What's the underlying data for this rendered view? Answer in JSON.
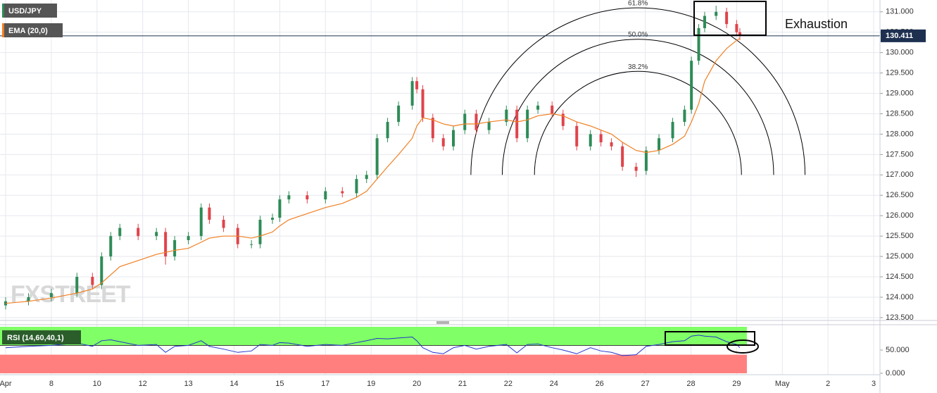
{
  "chart_data": {
    "type": "candlestick",
    "symbol": "USD/JPY",
    "watermark": "FXSTREET",
    "categories": [
      "Apr",
      "8",
      "10",
      "12",
      "13",
      "14",
      "15",
      "17",
      "19",
      "20",
      "21",
      "22",
      "24",
      "26",
      "27",
      "28",
      "29",
      "May",
      "2",
      "3"
    ],
    "ylim": [
      123.43,
      131.29
    ],
    "yticks": [
      {
        "value": 123.5,
        "label": "123.500"
      },
      {
        "value": 124,
        "label": "124.000"
      },
      {
        "value": 124.5,
        "label": "124.500"
      },
      {
        "value": 125,
        "label": "125.000"
      },
      {
        "value": 125.5,
        "label": "125.500"
      },
      {
        "value": 126,
        "label": "126.000"
      },
      {
        "value": 126.5,
        "label": "126.500"
      },
      {
        "value": 127,
        "label": "127.000"
      },
      {
        "value": 127.5,
        "label": "127.500"
      },
      {
        "value": 128,
        "label": "128.000"
      },
      {
        "value": 128.5,
        "label": "128.500"
      },
      {
        "value": 129,
        "label": "129.000"
      },
      {
        "value": 129.5,
        "label": "129.500"
      },
      {
        "value": 130,
        "label": "130.000"
      },
      {
        "value": 130.5,
        "label": "130.500"
      },
      {
        "value": 131,
        "label": "131.000"
      }
    ],
    "grid": true,
    "up_color": "#2e8b57",
    "down_color": "#e0434a",
    "candles": {
      "x": [
        0,
        0.5,
        1.0,
        1.56,
        1.9,
        2.1,
        2.3,
        2.5,
        2.9,
        3.3,
        3.5,
        3.7,
        4.0,
        4.28,
        4.46,
        4.77,
        5.08,
        5.38,
        5.57,
        5.84,
        6.0,
        6.2,
        6.6,
        7.0,
        7.37,
        7.68,
        7.9,
        8.13,
        8.36,
        8.6,
        8.9,
        9.0,
        9.13,
        9.35,
        9.58,
        9.8,
        10.05,
        10.3,
        10.58,
        10.96,
        11.19,
        11.42,
        11.65,
        11.96,
        12.2,
        12.5,
        12.8,
        13.03,
        13.26,
        13.5,
        13.8,
        14.02,
        14.3,
        14.6,
        14.86,
        15.01,
        15.17,
        15.3,
        15.55,
        15.78,
        16.0,
        16.07
      ],
      "open": [
        123.8,
        123.9,
        124.0,
        124.1,
        124.5,
        124.3,
        125.0,
        125.5,
        125.7,
        125.5,
        125.6,
        125.0,
        125.4,
        125.5,
        126.2,
        125.9,
        125.7,
        125.3,
        125.3,
        125.9,
        125.95,
        126.4,
        126.5,
        126.4,
        126.6,
        126.55,
        126.9,
        127.0,
        127.9,
        128.3,
        128.7,
        129.3,
        129.1,
        128.4,
        127.9,
        127.7,
        128.1,
        128.5,
        128.1,
        128.3,
        128.6,
        127.9,
        128.6,
        128.7,
        128.5,
        128.2,
        127.7,
        128.0,
        127.8,
        127.7,
        127.2,
        127.1,
        127.6,
        127.9,
        128.3,
        128.6,
        129.8,
        130.6,
        130.9,
        131.0,
        130.7,
        130.5
      ],
      "high": [
        124.0,
        124.1,
        124.2,
        124.6,
        124.6,
        125.1,
        125.6,
        125.8,
        125.8,
        125.7,
        125.7,
        125.5,
        125.6,
        126.3,
        126.3,
        126.0,
        125.8,
        125.4,
        126.0,
        126.05,
        126.5,
        126.6,
        126.6,
        126.7,
        126.7,
        127.0,
        127.1,
        128.0,
        128.4,
        128.8,
        129.4,
        129.4,
        129.2,
        128.5,
        128.0,
        128.2,
        128.6,
        128.6,
        128.4,
        128.7,
        128.7,
        128.7,
        128.8,
        128.8,
        128.6,
        128.3,
        128.1,
        128.1,
        127.9,
        127.8,
        127.3,
        127.7,
        128.0,
        128.4,
        128.7,
        129.9,
        130.7,
        131.0,
        131.15,
        131.1,
        130.8,
        130.6
      ],
      "low": [
        123.7,
        123.8,
        123.9,
        124.0,
        124.2,
        124.2,
        124.9,
        125.4,
        125.4,
        125.4,
        124.8,
        124.9,
        125.3,
        125.4,
        125.8,
        125.6,
        125.2,
        125.2,
        125.2,
        125.8,
        125.85,
        126.3,
        126.3,
        126.3,
        126.45,
        126.45,
        126.8,
        126.9,
        127.8,
        128.2,
        128.6,
        129.0,
        128.3,
        127.8,
        127.6,
        127.6,
        128.0,
        128.0,
        128.0,
        128.2,
        127.8,
        127.8,
        128.5,
        128.4,
        128.1,
        127.6,
        127.6,
        127.7,
        127.6,
        127.1,
        126.95,
        127.0,
        127.5,
        127.8,
        128.2,
        128.5,
        129.7,
        130.5,
        130.8,
        130.6,
        130.4,
        130.31
      ],
      "close": [
        123.9,
        124.0,
        124.1,
        124.5,
        124.3,
        125.0,
        125.5,
        125.7,
        125.5,
        125.6,
        125.0,
        125.4,
        125.5,
        126.2,
        125.9,
        125.7,
        125.3,
        125.3,
        125.9,
        125.95,
        126.4,
        126.5,
        126.4,
        126.6,
        126.55,
        126.9,
        127.0,
        127.9,
        128.3,
        128.7,
        129.3,
        129.1,
        128.4,
        127.9,
        127.7,
        128.1,
        128.5,
        128.1,
        128.3,
        128.6,
        127.9,
        128.6,
        128.7,
        128.5,
        128.2,
        127.7,
        128.0,
        127.8,
        127.7,
        127.2,
        127.1,
        127.6,
        127.9,
        128.3,
        128.6,
        129.8,
        130.6,
        130.9,
        131.0,
        130.7,
        130.5,
        130.41
      ]
    },
    "ema": {
      "name": "EMA (20,0)",
      "color": "#f07f22",
      "values": [
        123.85,
        123.9,
        123.98,
        124.1,
        124.2,
        124.35,
        124.55,
        124.75,
        124.9,
        125.05,
        125.1,
        125.15,
        125.2,
        125.35,
        125.45,
        125.5,
        125.5,
        125.45,
        125.5,
        125.6,
        125.75,
        125.9,
        126.05,
        126.2,
        126.3,
        126.45,
        126.6,
        126.9,
        127.2,
        127.5,
        127.9,
        128.2,
        128.4,
        128.35,
        128.25,
        128.2,
        128.25,
        128.25,
        128.3,
        128.35,
        128.3,
        128.35,
        128.45,
        128.5,
        128.45,
        128.3,
        128.2,
        128.1,
        128.0,
        127.8,
        127.6,
        127.55,
        127.6,
        127.75,
        127.95,
        128.3,
        128.75,
        129.3,
        129.8,
        130.1,
        130.3,
        130.35
      ]
    },
    "last_price": 130.411,
    "fib": {
      "center_x": 13.84,
      "base": 127.0,
      "levels": [
        {
          "label": "61.8%",
          "top": 131.1
        },
        {
          "label": "50.0%",
          "top": 130.33
        },
        {
          "label": "38.2%",
          "top": 129.54
        }
      ]
    },
    "annotation": "Exhaustion",
    "rsi": {
      "name": "RSI (14,60,40,1)",
      "color": "#2233cc",
      "ylim": [
        0,
        100
      ],
      "yticks": [
        {
          "value": 0,
          "label": "0.000"
        },
        {
          "value": 50,
          "label": "50.000"
        }
      ],
      "upper": 60,
      "lower": 40,
      "values": [
        55,
        58,
        60,
        65,
        58,
        70,
        72,
        68,
        60,
        62,
        45,
        58,
        60,
        70,
        58,
        52,
        45,
        48,
        62,
        60,
        66,
        65,
        58,
        62,
        60,
        66,
        70,
        75,
        74,
        76,
        78,
        70,
        55,
        45,
        42,
        55,
        60,
        52,
        58,
        62,
        44,
        62,
        63,
        55,
        50,
        42,
        55,
        48,
        45,
        38,
        40,
        58,
        62,
        68,
        70,
        80,
        82,
        80,
        78,
        68,
        62,
        55
      ]
    }
  }
}
